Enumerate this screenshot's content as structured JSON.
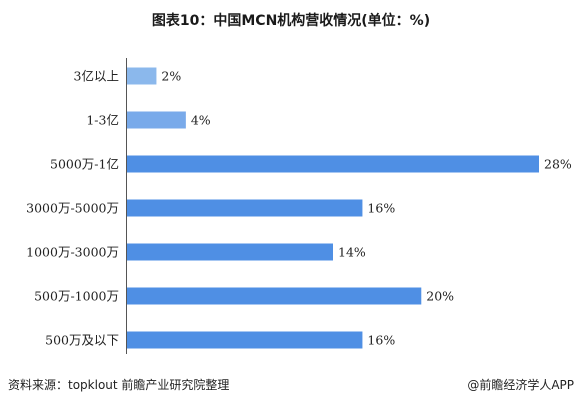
{
  "chart_data": {
    "type": "bar",
    "orientation": "horizontal",
    "title": "图表10：中国MCN机构营收情况(单位：%)",
    "categories": [
      "3亿以上",
      "1-3亿",
      "5000万-1亿",
      "3000万-5000万",
      "1000万-3000万",
      "500万-1000万",
      "500万及以下"
    ],
    "values": [
      2,
      4,
      28,
      16,
      14,
      20,
      16
    ],
    "value_labels": [
      "2%",
      "4%",
      "28%",
      "16%",
      "14%",
      "20%",
      "16%"
    ],
    "xlim": [
      0,
      28
    ],
    "grid": false,
    "legend": "none",
    "colors": [
      "#8bb8ec",
      "#79aaea",
      "#4f8fe4",
      "#4f8fe4",
      "#4f8fe4",
      "#4f8fe4",
      "#4f8fe4"
    ]
  },
  "footer": {
    "source": "资料来源：topklout 前瞻产业研究院整理",
    "brand": "@前瞻经济学人APP"
  }
}
